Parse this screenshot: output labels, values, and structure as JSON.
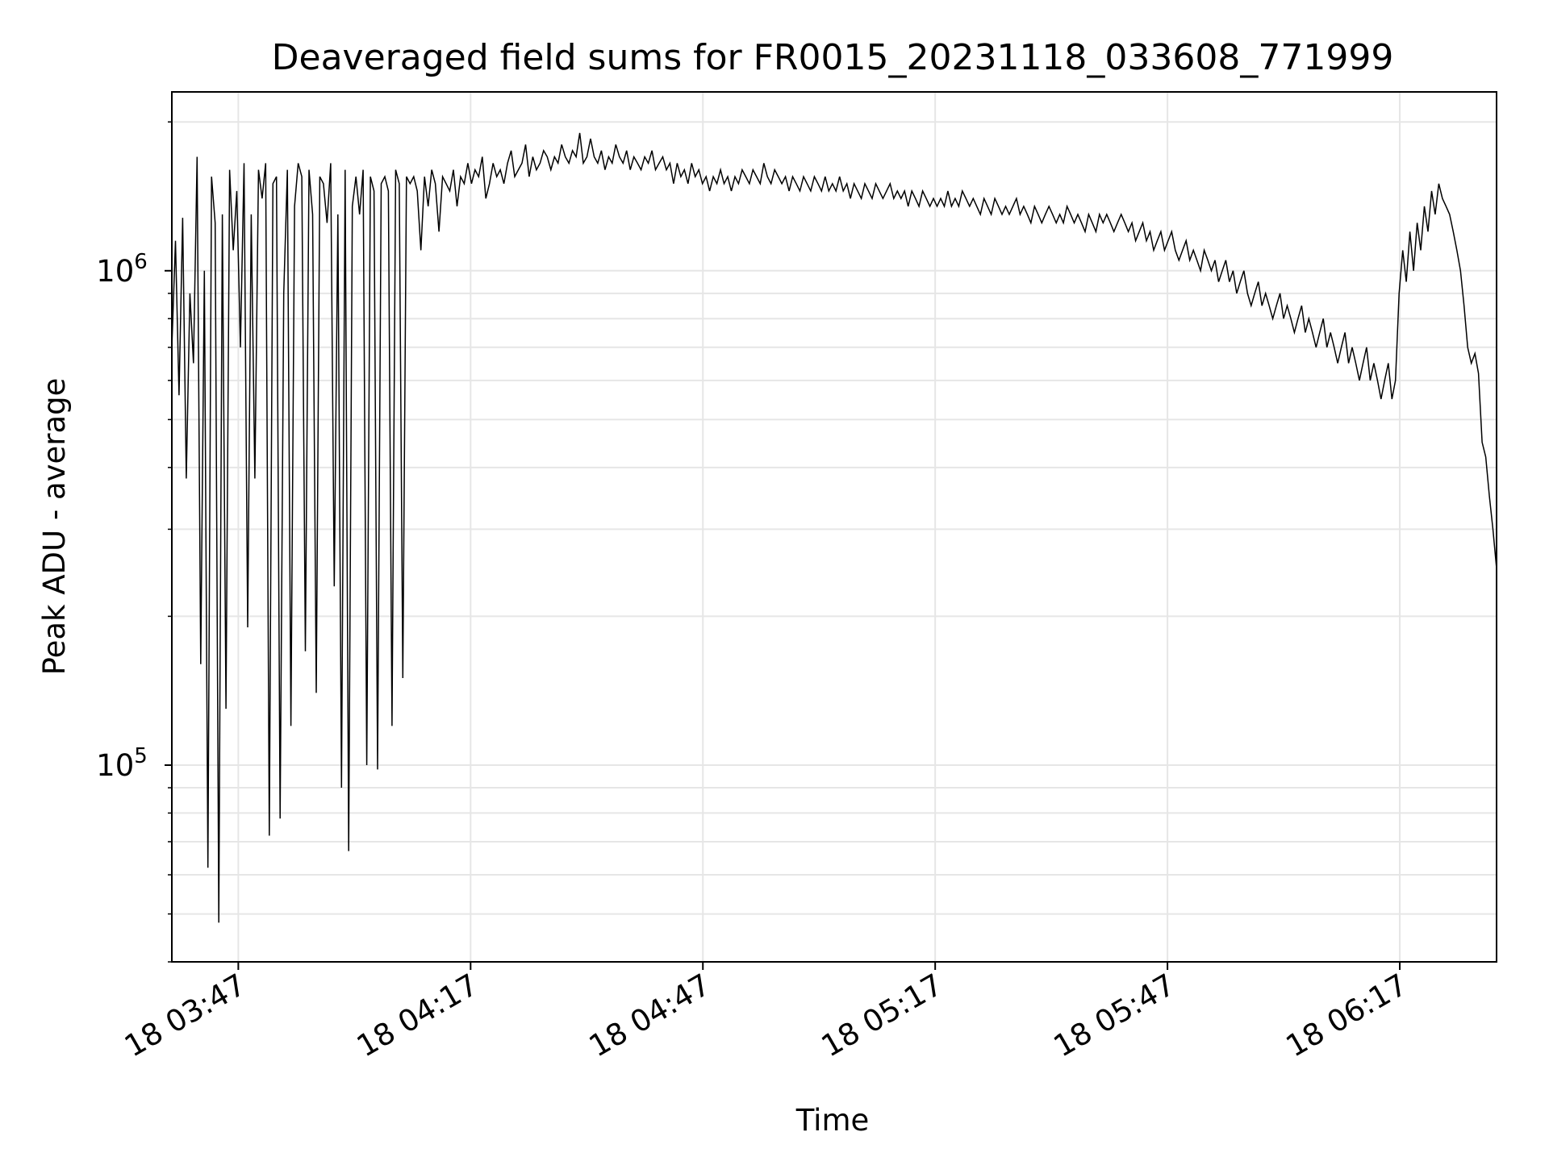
{
  "chart_data": {
    "type": "line",
    "title": "Deaveraged field sums for FR0015_20231118_033608_771999",
    "xlabel": "Time",
    "ylabel": "Peak ADU - average",
    "xlim": [
      "2023-11-18 03:38:25",
      "2023-11-18 06:29:30"
    ],
    "ylim": [
      40000,
      2300000
    ],
    "yscale": "log",
    "grid": true,
    "line_color": "#000000",
    "x_ticks": [
      "18 03:47",
      "18 04:17",
      "18 04:47",
      "18 05:17",
      "18 05:47",
      "18 06:17"
    ],
    "y_ticks": [
      {
        "base": "10",
        "exp": "5",
        "value": 100000
      },
      {
        "base": "10",
        "exp": "6",
        "value": 1000000
      }
    ],
    "series": [
      {
        "x_start": "2023-11-18 03:38:25",
        "x_end": "2023-11-18 06:29:30",
        "values": [
          700000,
          1150000,
          560000,
          1280000,
          380000,
          900000,
          650000,
          1700000,
          160000,
          1000000,
          62000,
          1550000,
          1250000,
          48000,
          1300000,
          130000,
          1600000,
          1100000,
          1450000,
          700000,
          1650000,
          190000,
          1300000,
          380000,
          1600000,
          1400000,
          1650000,
          72000,
          1500000,
          1550000,
          78000,
          900000,
          1600000,
          120000,
          1350000,
          1650000,
          1550000,
          170000,
          1600000,
          1300000,
          140000,
          1550000,
          1500000,
          1250000,
          1650000,
          230000,
          1300000,
          90000,
          1600000,
          67000,
          1350000,
          1550000,
          1300000,
          1600000,
          100000,
          1550000,
          1450000,
          98000,
          1500000,
          1550000,
          1450000,
          120000,
          1600000,
          1500000,
          150000,
          1550000,
          1500000,
          1550000,
          1450000,
          1100000,
          1550000,
          1350000,
          1600000,
          1500000,
          1200000,
          1550000,
          1500000,
          1450000,
          1600000,
          1350000,
          1550000,
          1500000,
          1650000,
          1500000,
          1600000,
          1550000,
          1700000,
          1400000,
          1500000,
          1650000,
          1550000,
          1600000,
          1500000,
          1650000,
          1750000,
          1550000,
          1600000,
          1650000,
          1800000,
          1550000,
          1700000,
          1600000,
          1650000,
          1750000,
          1700000,
          1600000,
          1700000,
          1650000,
          1800000,
          1700000,
          1650000,
          1750000,
          1700000,
          1900000,
          1650000,
          1700000,
          1850000,
          1700000,
          1650000,
          1750000,
          1600000,
          1700000,
          1650000,
          1800000,
          1700000,
          1650000,
          1750000,
          1600000,
          1700000,
          1650000,
          1600000,
          1700000,
          1650000,
          1750000,
          1600000,
          1650000,
          1700000,
          1600000,
          1650000,
          1500000,
          1650000,
          1550000,
          1600000,
          1500000,
          1650000,
          1550000,
          1600000,
          1500000,
          1550000,
          1450000,
          1550000,
          1500000,
          1600000,
          1500000,
          1550000,
          1450000,
          1550000,
          1500000,
          1600000,
          1550000,
          1500000,
          1600000,
          1550000,
          1500000,
          1650000,
          1550000,
          1500000,
          1600000,
          1550000,
          1500000,
          1550000,
          1450000,
          1550000,
          1500000,
          1450000,
          1550000,
          1500000,
          1450000,
          1550000,
          1500000,
          1450000,
          1550000,
          1450000,
          1500000,
          1450000,
          1550000,
          1450000,
          1500000,
          1400000,
          1500000,
          1450000,
          1400000,
          1500000,
          1450000,
          1400000,
          1500000,
          1450000,
          1400000,
          1450000,
          1500000,
          1400000,
          1450000,
          1400000,
          1450000,
          1350000,
          1450000,
          1400000,
          1350000,
          1450000,
          1400000,
          1350000,
          1400000,
          1350000,
          1400000,
          1350000,
          1450000,
          1350000,
          1400000,
          1350000,
          1450000,
          1400000,
          1350000,
          1400000,
          1350000,
          1300000,
          1400000,
          1350000,
          1300000,
          1400000,
          1350000,
          1300000,
          1350000,
          1300000,
          1350000,
          1400000,
          1300000,
          1350000,
          1300000,
          1250000,
          1350000,
          1300000,
          1250000,
          1300000,
          1350000,
          1300000,
          1250000,
          1300000,
          1250000,
          1350000,
          1300000,
          1250000,
          1300000,
          1250000,
          1200000,
          1300000,
          1250000,
          1200000,
          1300000,
          1250000,
          1300000,
          1250000,
          1200000,
          1250000,
          1300000,
          1250000,
          1200000,
          1250000,
          1150000,
          1200000,
          1250000,
          1150000,
          1200000,
          1100000,
          1150000,
          1200000,
          1100000,
          1150000,
          1200000,
          1100000,
          1050000,
          1100000,
          1150000,
          1050000,
          1100000,
          1050000,
          1000000,
          1100000,
          1050000,
          1000000,
          1050000,
          950000,
          1000000,
          1050000,
          950000,
          1000000,
          900000,
          950000,
          1000000,
          900000,
          850000,
          900000,
          950000,
          850000,
          900000,
          850000,
          800000,
          850000,
          900000,
          800000,
          850000,
          800000,
          750000,
          800000,
          850000,
          750000,
          800000,
          750000,
          700000,
          750000,
          800000,
          700000,
          750000,
          700000,
          650000,
          700000,
          750000,
          650000,
          700000,
          650000,
          600000,
          650000,
          700000,
          600000,
          650000,
          600000,
          550000,
          600000,
          650000,
          550000,
          600000,
          900000,
          1100000,
          950000,
          1200000,
          1000000,
          1250000,
          1100000,
          1350000,
          1200000,
          1450000,
          1300000,
          1500000,
          1400000,
          1350000,
          1300000,
          1200000,
          1100000,
          1000000,
          850000,
          700000,
          650000,
          680000,
          620000,
          450000,
          420000,
          350000,
          300000,
          250000
        ]
      }
    ]
  }
}
